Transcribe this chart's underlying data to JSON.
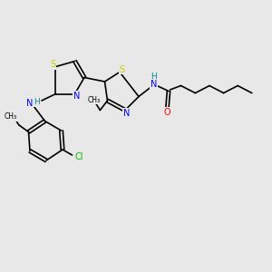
{
  "bg_color": "#e8e8e8",
  "atom_colors": {
    "S": "#cccc00",
    "N": "#0000ff",
    "O": "#ff0000",
    "C": "#000000",
    "Cl": "#00bb00",
    "NH": "#008899",
    "H": "#008899"
  },
  "figsize": [
    3.0,
    3.0
  ],
  "dpi": 100,
  "lw": 1.2,
  "fs": 7.0
}
